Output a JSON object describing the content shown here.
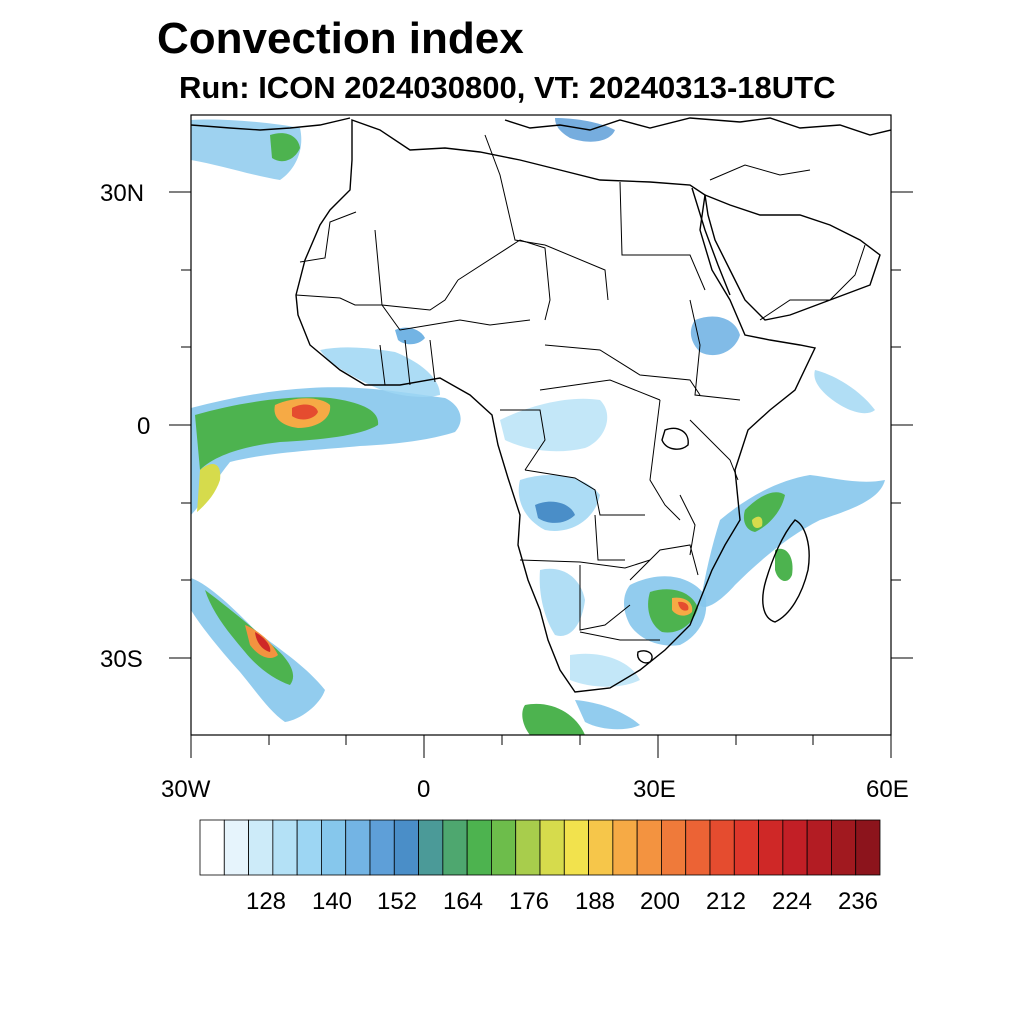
{
  "title": "Convection index",
  "subtitle": "Run: ICON 2024030800,  VT: 20240313-18UTC",
  "map": {
    "lon_range": [
      -30,
      60
    ],
    "lat_range": [
      -40,
      40
    ],
    "lon_labels": [
      "30W",
      "0",
      "30E",
      "60E"
    ],
    "lat_labels": [
      "30N",
      "0",
      "30S"
    ],
    "land_color": "#ffffff",
    "border_color": "#000000"
  },
  "colorbar": {
    "labels": [
      "128",
      "140",
      "152",
      "164",
      "176",
      "188",
      "200",
      "212",
      "224",
      "236"
    ],
    "colors": [
      "#ffffff",
      "#e6f4fc",
      "#cdebf9",
      "#b4e1f6",
      "#9dd6f3",
      "#86c7ec",
      "#73b4e4",
      "#5e9fd8",
      "#4a8ec8",
      "#4b9a98",
      "#4ea76f",
      "#4db34f",
      "#6dbd4b",
      "#a8cd4c",
      "#d6db4c",
      "#f2e24d",
      "#f6c64a",
      "#f6aa45",
      "#f39340",
      "#ef7a3a",
      "#ec6335",
      "#e54c2f",
      "#dd372b",
      "#cf2827",
      "#c21f26",
      "#b31c23",
      "#a1191f",
      "#8c141c"
    ]
  }
}
